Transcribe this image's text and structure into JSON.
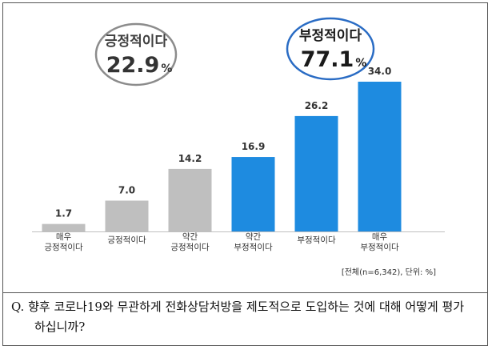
{
  "chart_data": {
    "type": "bar",
    "categories": [
      [
        "매우",
        "긍정적이다"
      ],
      [
        "긍정적이다"
      ],
      [
        "약간",
        "긍정적이다"
      ],
      [
        "약간",
        "부정적이다"
      ],
      [
        "부정적이다"
      ],
      [
        "매우",
        "부정적이다"
      ]
    ],
    "values": [
      1.7,
      7.0,
      14.2,
      16.9,
      26.2,
      34.0
    ],
    "value_labels": [
      "1.7",
      "7.0",
      "14.2",
      "16.9",
      "26.2",
      "34.0"
    ],
    "bar_colors": [
      "#bfbfbf",
      "#bfbfbf",
      "#bfbfbf",
      "#1e8be0",
      "#1e8be0",
      "#1e8be0"
    ],
    "ylim": [
      0,
      34
    ],
    "grid": false,
    "note": "[전체(n=6,342), 단위: %]",
    "summaries": [
      {
        "label": "긍정적이다",
        "value": "22.9",
        "unit": "%",
        "border_color": "#8c8c8c",
        "label_color": "#404040",
        "value_color": "#333333"
      },
      {
        "label": "부정적이다",
        "value": "77.1",
        "unit": "%",
        "border_color": "#2a6cc4",
        "label_color": "#1a1a1a",
        "value_color": "#1a1a1a"
      }
    ]
  },
  "question": {
    "line1": "Q. 향후 코로나19와 무관하게 전화상담처방을 제도적으로 도입하는 것에 대해 어떻게 평가",
    "line2": "하십니까?"
  }
}
